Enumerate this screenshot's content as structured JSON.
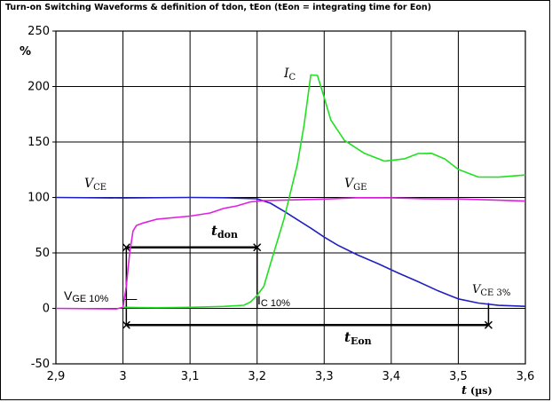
{
  "chart_data": {
    "type": "line",
    "title": "Turn-on Switching Waveforms & definition of tdon, tEon (tEon = integrating time for Eon)",
    "xlabel_var": "t",
    "xlabel_unit": "(µs)",
    "ylabel": "%",
    "xlim": [
      2.9,
      3.6
    ],
    "ylim": [
      -50,
      250
    ],
    "x_ticks": [
      2.9,
      3.0,
      3.1,
      3.2,
      3.3,
      3.4,
      3.5,
      3.6
    ],
    "x_tick_labels": [
      "2,9",
      "3",
      "3,1",
      "3,2",
      "3,3",
      "3,4",
      "3,5",
      "3,6"
    ],
    "y_ticks": [
      -50,
      0,
      50,
      100,
      150,
      200,
      250
    ],
    "y_tick_labels": [
      "-50",
      "0",
      "50",
      "100",
      "150",
      "200",
      "250"
    ],
    "grid": true,
    "colors": {
      "VCE": "#2020c0",
      "VGE": "#e020e0",
      "IC": "#20e020"
    },
    "series": [
      {
        "key": "VCE",
        "x": [
          2.9,
          3.0,
          3.1,
          3.15,
          3.2,
          3.22,
          3.24,
          3.26,
          3.28,
          3.3,
          3.32,
          3.35,
          3.38,
          3.41,
          3.44,
          3.47,
          3.5,
          3.53,
          3.56,
          3.6
        ],
        "y": [
          100,
          100,
          100,
          100,
          99,
          95,
          88,
          80,
          72,
          64,
          57,
          48,
          40,
          32,
          24,
          16,
          9,
          5,
          3,
          2
        ]
      },
      {
        "key": "VGE",
        "x": [
          2.9,
          2.99,
          3.0,
          3.005,
          3.01,
          3.015,
          3.02,
          3.03,
          3.05,
          3.1,
          3.13,
          3.15,
          3.17,
          3.19,
          3.21,
          3.25,
          3.3,
          3.35,
          3.4,
          3.45,
          3.5,
          3.55,
          3.6
        ],
        "y": [
          0,
          0,
          1,
          20,
          50,
          70,
          75,
          77,
          80,
          83,
          86,
          90,
          92,
          96,
          97,
          98,
          99,
          100,
          100,
          99,
          99,
          98,
          97
        ]
      },
      {
        "key": "IC",
        "x": [
          3.0,
          3.05,
          3.1,
          3.15,
          3.18,
          3.19,
          3.2,
          3.21,
          3.22,
          3.24,
          3.26,
          3.27,
          3.28,
          3.29,
          3.3,
          3.31,
          3.33,
          3.36,
          3.39,
          3.42,
          3.44,
          3.46,
          3.48,
          3.5,
          3.53,
          3.56,
          3.6
        ],
        "y": [
          1,
          1,
          1,
          2,
          3,
          6,
          12,
          20,
          40,
          80,
          130,
          165,
          210,
          210,
          190,
          170,
          152,
          140,
          133,
          135,
          140,
          140,
          135,
          125,
          118,
          118,
          120
        ]
      }
    ],
    "annotations": {
      "vce_label": {
        "var": "V",
        "sub": "CE"
      },
      "vge_label": {
        "var": "V",
        "sub": "GE"
      },
      "ic_label": {
        "var": "I",
        "sub": "C"
      },
      "vge10_label": {
        "main": "V",
        "sub": "GE 10%"
      },
      "ic10_label": {
        "main": "I",
        "sub": "C 10%"
      },
      "vce3_label": {
        "var": "V",
        "sub": "CE 3%"
      },
      "tdon_label": {
        "var": "t",
        "sub": "don"
      },
      "teon_label": {
        "var": "t",
        "sub": "Eon"
      }
    },
    "markers": {
      "tdon": {
        "x_start": 3.005,
        "x_end": 3.2,
        "y": 55
      },
      "teon": {
        "x_start": 3.005,
        "x_end": 3.545,
        "y": -15
      }
    }
  }
}
